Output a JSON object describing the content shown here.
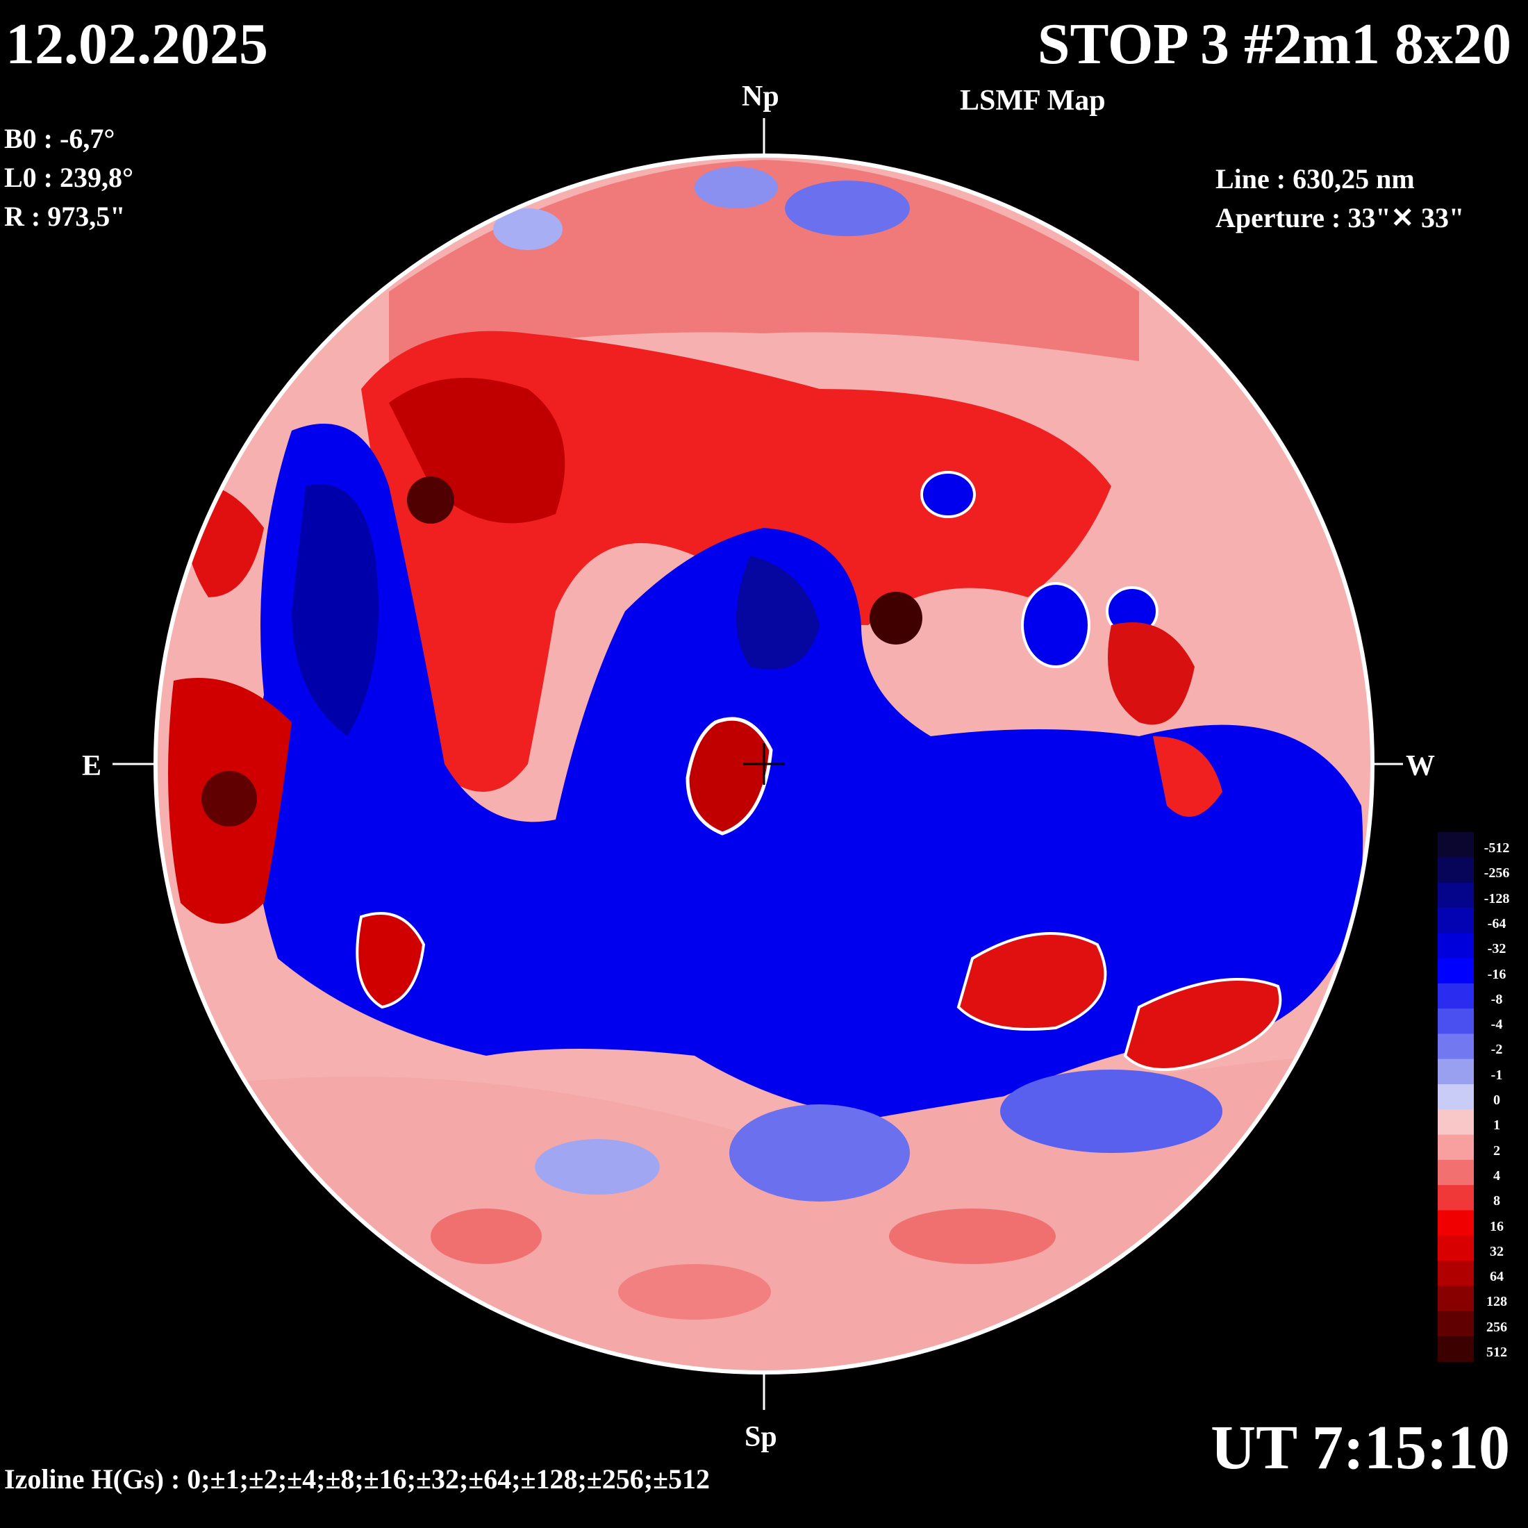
{
  "header": {
    "date": "12.02.2025",
    "title": "STOP 3 #2m1 8x20",
    "subtitle": "LSMF  Map"
  },
  "params": {
    "b0": "B0 : -6,7°",
    "l0": "L0 : 239,8°",
    "r": "R  : 973,5\"",
    "line": "Line :  630,25 nm",
    "aperture": "Aperture : 33\"✕ 33\""
  },
  "orientation": {
    "north": "Np",
    "south": "Sp",
    "east": "E",
    "west": "W"
  },
  "footer": {
    "time": "UT 7:15:10",
    "izoline": "Izoline H(Gs) : 0;±1;±2;±4;±8;±16;±32;±64;±128;±256;±512"
  },
  "colorbar": {
    "labels": [
      "-512",
      "-256",
      "-128",
      "-64",
      "-32",
      "-16",
      "-8",
      "-4",
      "-2",
      "-1",
      "0",
      "1",
      "2",
      "4",
      "8",
      "16",
      "32",
      "64",
      "128",
      "256",
      "512"
    ],
    "colors": [
      "#0a0630",
      "#06055a",
      "#04058a",
      "#0303b4",
      "#0000dc",
      "#0000ff",
      "#2a2cf0",
      "#4a50f0",
      "#7278f0",
      "#9aa0f0",
      "#c8ccf6",
      "#f8c8c8",
      "#f8a0a0",
      "#f27070",
      "#f03838",
      "#f00000",
      "#d80000",
      "#b00000",
      "#880000",
      "#600000",
      "#3c0000"
    ],
    "negative_color": "#0000e0",
    "positive_color": "#e80000"
  }
}
